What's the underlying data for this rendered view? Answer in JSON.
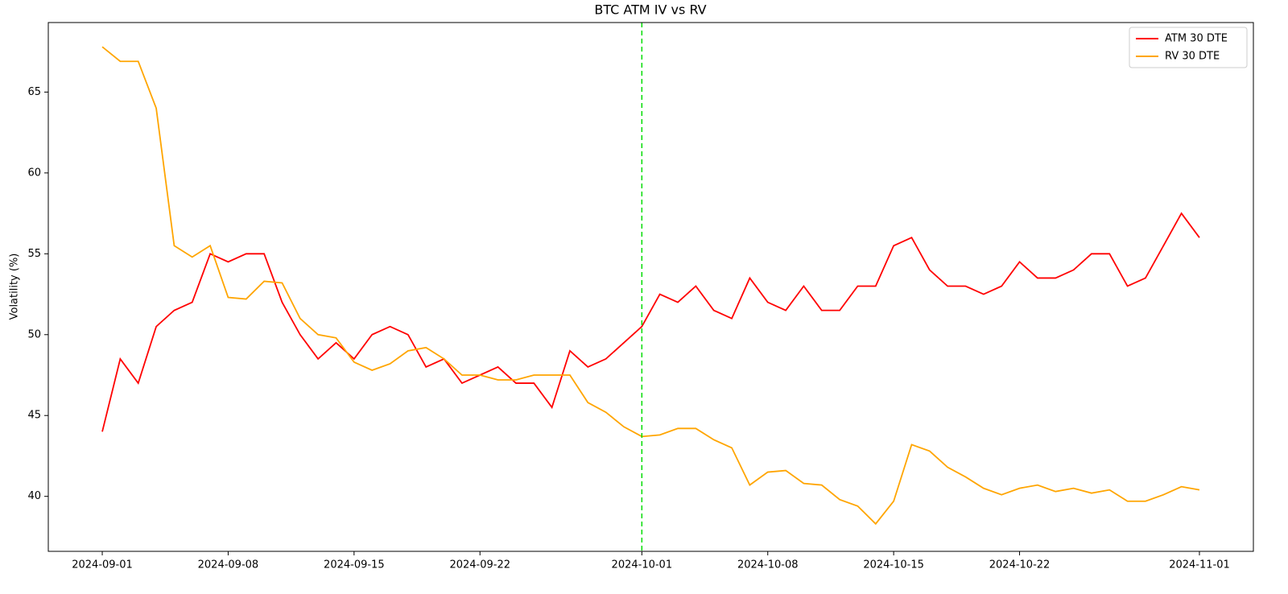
{
  "chart_data": {
    "type": "line",
    "title": "BTC ATM IV vs RV",
    "y_label": "Volatility (%)",
    "x": [
      "2024-09-01",
      "2024-09-02",
      "2024-09-03",
      "2024-09-04",
      "2024-09-05",
      "2024-09-06",
      "2024-09-07",
      "2024-09-08",
      "2024-09-09",
      "2024-09-10",
      "2024-09-11",
      "2024-09-12",
      "2024-09-13",
      "2024-09-14",
      "2024-09-15",
      "2024-09-16",
      "2024-09-17",
      "2024-09-18",
      "2024-09-19",
      "2024-09-20",
      "2024-09-21",
      "2024-09-22",
      "2024-09-23",
      "2024-09-24",
      "2024-09-25",
      "2024-09-26",
      "2024-09-27",
      "2024-09-28",
      "2024-09-29",
      "2024-09-30",
      "2024-10-01",
      "2024-10-02",
      "2024-10-03",
      "2024-10-04",
      "2024-10-05",
      "2024-10-06",
      "2024-10-07",
      "2024-10-08",
      "2024-10-09",
      "2024-10-10",
      "2024-10-11",
      "2024-10-12",
      "2024-10-13",
      "2024-10-14",
      "2024-10-15",
      "2024-10-16",
      "2024-10-17",
      "2024-10-18",
      "2024-10-19",
      "2024-10-20",
      "2024-10-21",
      "2024-10-22",
      "2024-10-23",
      "2024-10-24",
      "2024-10-25",
      "2024-10-26",
      "2024-10-27",
      "2024-10-28",
      "2024-10-29",
      "2024-10-30",
      "2024-10-31",
      "2024-11-01"
    ],
    "series": [
      {
        "name": "ATM 30 DTE",
        "color": "#ff0000",
        "values": [
          44,
          48.5,
          47,
          50.5,
          51.5,
          52,
          55,
          54.5,
          55,
          55,
          52,
          50,
          48.5,
          49.5,
          48.5,
          50,
          50.5,
          50,
          48,
          48.5,
          47,
          47.5,
          48,
          47,
          47,
          45.5,
          49,
          48,
          48.5,
          49.5,
          50.5,
          52.5,
          52,
          53,
          51.5,
          51,
          53.5,
          52,
          51.5,
          53,
          51.5,
          51.5,
          53,
          53,
          55.5,
          56,
          54,
          53,
          53,
          52.5,
          53,
          54.5,
          53.5,
          53.5,
          54,
          55,
          55,
          53,
          53.5,
          55.5,
          57.5,
          56
        ]
      },
      {
        "name": "RV 30 DTE",
        "color": "#ffa500",
        "values": [
          67.8,
          66.9,
          66.9,
          64,
          55.5,
          54.8,
          55.5,
          52.3,
          52.2,
          53.3,
          53.2,
          51,
          50,
          49.8,
          48.3,
          47.8,
          48.2,
          49,
          49.2,
          48.5,
          47.5,
          47.5,
          47.2,
          47.2,
          47.5,
          47.5,
          47.5,
          45.8,
          45.2,
          44.3,
          43.7,
          43.8,
          44.2,
          44.2,
          43.5,
          43,
          40.7,
          41.5,
          41.6,
          40.8,
          40.7,
          39.8,
          39.4,
          38.3,
          39.7,
          43.2,
          42.8,
          41.8,
          41.2,
          40.5,
          40.1,
          40.5,
          40.7,
          40.3,
          40.5,
          40.2,
          40.4,
          39.7,
          39.7,
          40.1,
          40.6,
          40.4
        ]
      }
    ],
    "vline": "2024-10-01",
    "vline_color": "#00dd00",
    "xlim": [
      "2024-08-29",
      "2024-11-04"
    ],
    "xticks": [
      "2024-09-01",
      "2024-09-08",
      "2024-09-15",
      "2024-09-22",
      "2024-10-01",
      "2024-10-08",
      "2024-10-15",
      "2024-10-22",
      "2024-11-01"
    ],
    "ylim": [
      36.6,
      69.3
    ],
    "yticks": [
      40,
      45,
      50,
      55,
      60,
      65
    ],
    "legend": "upper right"
  }
}
